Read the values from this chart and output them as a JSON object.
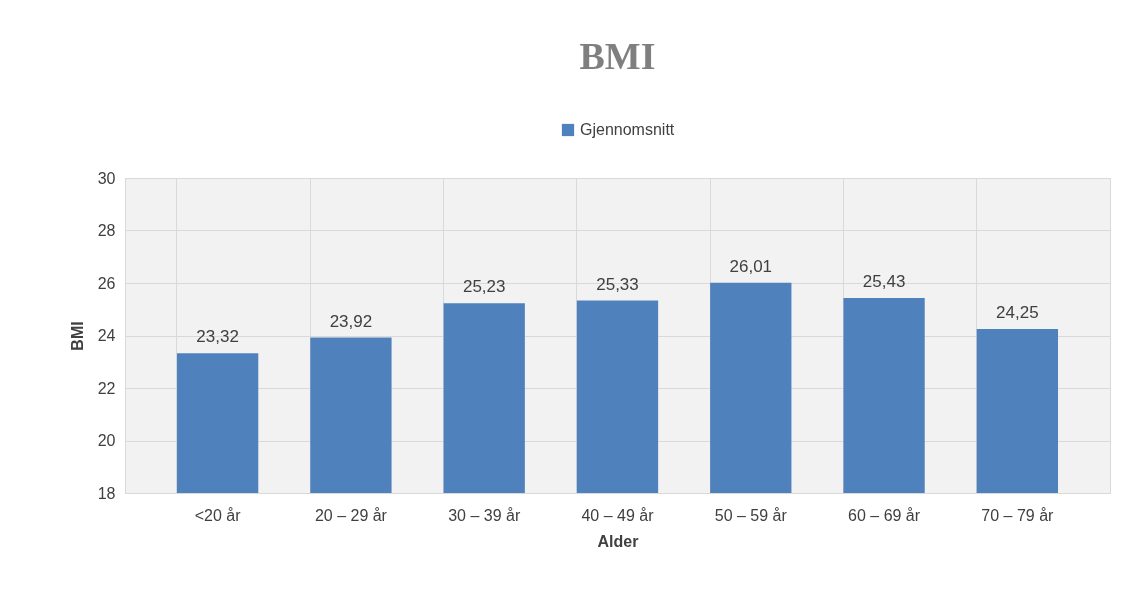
{
  "chart_data": {
    "type": "bar",
    "title": "BMI",
    "xlabel": "Alder",
    "ylabel": "BMI",
    "categories": [
      "<20 år",
      "20 – 29 år",
      "30 – 39 år",
      "40 – 49 år",
      "50 – 59 år",
      "60 – 69 år",
      "70 – 79 år"
    ],
    "series": [
      {
        "name": "Gjennomsnitt",
        "color": "#4f81bd",
        "values": [
          23.32,
          23.92,
          25.23,
          25.33,
          26.01,
          25.43,
          24.25
        ],
        "value_labels": [
          "23,32",
          "23,92",
          "25,23",
          "25,33",
          "26,01",
          "25,43",
          "24,25"
        ]
      }
    ],
    "ylim": [
      18,
      30
    ],
    "yticks": [
      18,
      20,
      22,
      24,
      26,
      28,
      30
    ],
    "grid": true,
    "legend": "top"
  }
}
